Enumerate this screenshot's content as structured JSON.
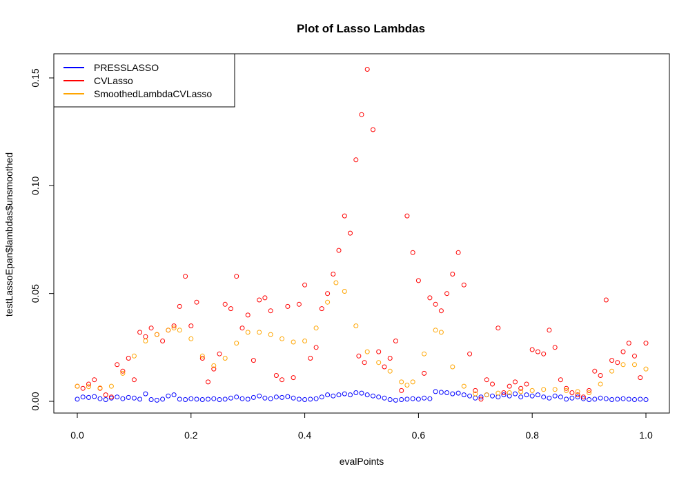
{
  "chart_data": {
    "type": "scatter",
    "title": "Plot of Lasso Lambdas",
    "xlabel": "evalPoints",
    "ylabel": "testLassoEpan$lambdas$unsmoothed",
    "xlim": [
      0,
      1
    ],
    "ylim": [
      0,
      0.155
    ],
    "x_ticks": [
      0.0,
      0.2,
      0.4,
      0.6,
      0.8,
      1.0
    ],
    "x_tick_labels": [
      "0.0",
      "0.2",
      "0.4",
      "0.6",
      "0.8",
      "1.0"
    ],
    "y_ticks": [
      0.0,
      0.05,
      0.1,
      0.15
    ],
    "y_tick_labels": [
      "0.00",
      "0.05",
      "0.10",
      "0.15"
    ],
    "grid": false,
    "legend_position": "top-left",
    "legend": [
      {
        "name": "PRESSLASSO",
        "color": "#0000ff"
      },
      {
        "name": "CVLasso",
        "color": "#ff0000"
      },
      {
        "name": "SmoothedLambdaCVLasso",
        "color": "#ffa500"
      }
    ],
    "series": [
      {
        "name": "PRESSLASSO",
        "color": "#0000ff",
        "marker": "open-circle",
        "x": [
          0.0,
          0.01,
          0.02,
          0.03,
          0.04,
          0.05,
          0.06,
          0.07,
          0.08,
          0.09,
          0.1,
          0.11,
          0.12,
          0.13,
          0.14,
          0.15,
          0.16,
          0.17,
          0.18,
          0.19,
          0.2,
          0.21,
          0.22,
          0.23,
          0.24,
          0.25,
          0.26,
          0.27,
          0.28,
          0.29,
          0.3,
          0.31,
          0.32,
          0.33,
          0.34,
          0.35,
          0.36,
          0.37,
          0.38,
          0.39,
          0.4,
          0.41,
          0.42,
          0.43,
          0.44,
          0.45,
          0.46,
          0.47,
          0.48,
          0.49,
          0.5,
          0.51,
          0.52,
          0.53,
          0.54,
          0.55,
          0.56,
          0.57,
          0.58,
          0.59,
          0.6,
          0.61,
          0.62,
          0.63,
          0.64,
          0.65,
          0.66,
          0.67,
          0.68,
          0.69,
          0.7,
          0.71,
          0.72,
          0.73,
          0.74,
          0.75,
          0.76,
          0.77,
          0.78,
          0.79,
          0.8,
          0.81,
          0.82,
          0.83,
          0.84,
          0.85,
          0.86,
          0.87,
          0.88,
          0.89,
          0.9,
          0.91,
          0.92,
          0.93,
          0.94,
          0.95,
          0.96,
          0.97,
          0.98,
          0.99,
          1.0
        ],
        "y": [
          0.001,
          0.002,
          0.0018,
          0.0022,
          0.0012,
          0.0008,
          0.0015,
          0.002,
          0.0012,
          0.0018,
          0.0015,
          0.001,
          0.0035,
          0.0008,
          0.0005,
          0.001,
          0.0025,
          0.003,
          0.001,
          0.0008,
          0.0012,
          0.001,
          0.0008,
          0.001,
          0.0012,
          0.0008,
          0.001,
          0.0015,
          0.002,
          0.0012,
          0.001,
          0.0018,
          0.0025,
          0.0015,
          0.0012,
          0.002,
          0.0018,
          0.0022,
          0.0015,
          0.001,
          0.0008,
          0.001,
          0.0012,
          0.002,
          0.003,
          0.0025,
          0.003,
          0.0035,
          0.003,
          0.004,
          0.0038,
          0.003,
          0.0025,
          0.002,
          0.0015,
          0.0008,
          0.0005,
          0.0008,
          0.001,
          0.0012,
          0.001,
          0.0015,
          0.0012,
          0.0045,
          0.0042,
          0.004,
          0.0035,
          0.0038,
          0.003,
          0.0025,
          0.0015,
          0.002,
          0.003,
          0.0025,
          0.002,
          0.003,
          0.0025,
          0.0035,
          0.002,
          0.003,
          0.0025,
          0.003,
          0.002,
          0.0015,
          0.0025,
          0.002,
          0.001,
          0.0015,
          0.002,
          0.0012,
          0.0008,
          0.001,
          0.0015,
          0.0012,
          0.0008,
          0.001,
          0.0012,
          0.001,
          0.0008,
          0.001,
          0.0008
        ]
      },
      {
        "name": "CVLasso",
        "color": "#ff0000",
        "marker": "open-circle",
        "x": [
          0.0,
          0.01,
          0.02,
          0.03,
          0.04,
          0.05,
          0.06,
          0.07,
          0.08,
          0.09,
          0.1,
          0.11,
          0.12,
          0.13,
          0.14,
          0.15,
          0.16,
          0.17,
          0.18,
          0.19,
          0.2,
          0.21,
          0.22,
          0.23,
          0.24,
          0.25,
          0.26,
          0.27,
          0.28,
          0.29,
          0.3,
          0.31,
          0.32,
          0.33,
          0.34,
          0.35,
          0.36,
          0.37,
          0.38,
          0.39,
          0.4,
          0.41,
          0.42,
          0.43,
          0.44,
          0.45,
          0.46,
          0.47,
          0.48,
          0.49,
          0.495,
          0.5,
          0.505,
          0.51,
          0.52,
          0.53,
          0.54,
          0.55,
          0.56,
          0.57,
          0.58,
          0.59,
          0.6,
          0.61,
          0.62,
          0.63,
          0.64,
          0.65,
          0.66,
          0.67,
          0.68,
          0.69,
          0.7,
          0.71,
          0.72,
          0.73,
          0.74,
          0.75,
          0.76,
          0.77,
          0.78,
          0.79,
          0.8,
          0.81,
          0.82,
          0.83,
          0.84,
          0.85,
          0.86,
          0.87,
          0.88,
          0.89,
          0.9,
          0.91,
          0.92,
          0.93,
          0.94,
          0.95,
          0.96,
          0.97,
          0.98,
          0.99,
          1.0
        ],
        "y": [
          0.007,
          0.006,
          0.008,
          0.01,
          0.006,
          0.003,
          0.002,
          0.017,
          0.014,
          0.02,
          0.01,
          0.032,
          0.03,
          0.034,
          0.031,
          0.028,
          0.033,
          0.035,
          0.044,
          0.058,
          0.035,
          0.046,
          0.02,
          0.009,
          0.015,
          0.022,
          0.045,
          0.043,
          0.058,
          0.034,
          0.04,
          0.019,
          0.047,
          0.048,
          0.042,
          0.012,
          0.01,
          0.044,
          0.011,
          0.045,
          0.054,
          0.02,
          0.025,
          0.043,
          0.05,
          0.059,
          0.07,
          0.086,
          0.078,
          0.112,
          0.021,
          0.133,
          0.018,
          0.154,
          0.126,
          0.023,
          0.016,
          0.02,
          0.028,
          0.005,
          0.086,
          0.069,
          0.056,
          0.013,
          0.048,
          0.045,
          0.042,
          0.05,
          0.059,
          0.069,
          0.054,
          0.022,
          0.005,
          0.001,
          0.01,
          0.008,
          0.034,
          0.004,
          0.007,
          0.009,
          0.006,
          0.008,
          0.024,
          0.023,
          0.022,
          0.033,
          0.025,
          0.01,
          0.006,
          0.004,
          0.003,
          0.002,
          0.005,
          0.014,
          0.012,
          0.047,
          0.019,
          0.018,
          0.023,
          0.027,
          0.021,
          0.011,
          0.027
        ]
      },
      {
        "name": "SmoothedLambdaCVLasso",
        "color": "#ffa500",
        "marker": "open-circle",
        "x": [
          0.0,
          0.02,
          0.04,
          0.06,
          0.08,
          0.1,
          0.12,
          0.14,
          0.16,
          0.17,
          0.18,
          0.2,
          0.22,
          0.24,
          0.26,
          0.28,
          0.3,
          0.32,
          0.34,
          0.36,
          0.38,
          0.4,
          0.42,
          0.44,
          0.455,
          0.47,
          0.49,
          0.51,
          0.53,
          0.55,
          0.57,
          0.58,
          0.59,
          0.61,
          0.63,
          0.64,
          0.66,
          0.68,
          0.7,
          0.72,
          0.74,
          0.76,
          0.78,
          0.8,
          0.82,
          0.84,
          0.86,
          0.88,
          0.9,
          0.92,
          0.94,
          0.96,
          0.98,
          1.0
        ],
        "y": [
          0.007,
          0.0068,
          0.0062,
          0.007,
          0.013,
          0.021,
          0.028,
          0.031,
          0.033,
          0.034,
          0.033,
          0.029,
          0.021,
          0.0165,
          0.02,
          0.027,
          0.032,
          0.032,
          0.031,
          0.029,
          0.0275,
          0.028,
          0.034,
          0.046,
          0.055,
          0.051,
          0.035,
          0.023,
          0.018,
          0.014,
          0.009,
          0.0075,
          0.009,
          0.022,
          0.033,
          0.032,
          0.016,
          0.007,
          0.0035,
          0.003,
          0.0038,
          0.004,
          0.0045,
          0.005,
          0.0055,
          0.0055,
          0.005,
          0.0045,
          0.004,
          0.008,
          0.014,
          0.017,
          0.017,
          0.015
        ]
      }
    ]
  }
}
